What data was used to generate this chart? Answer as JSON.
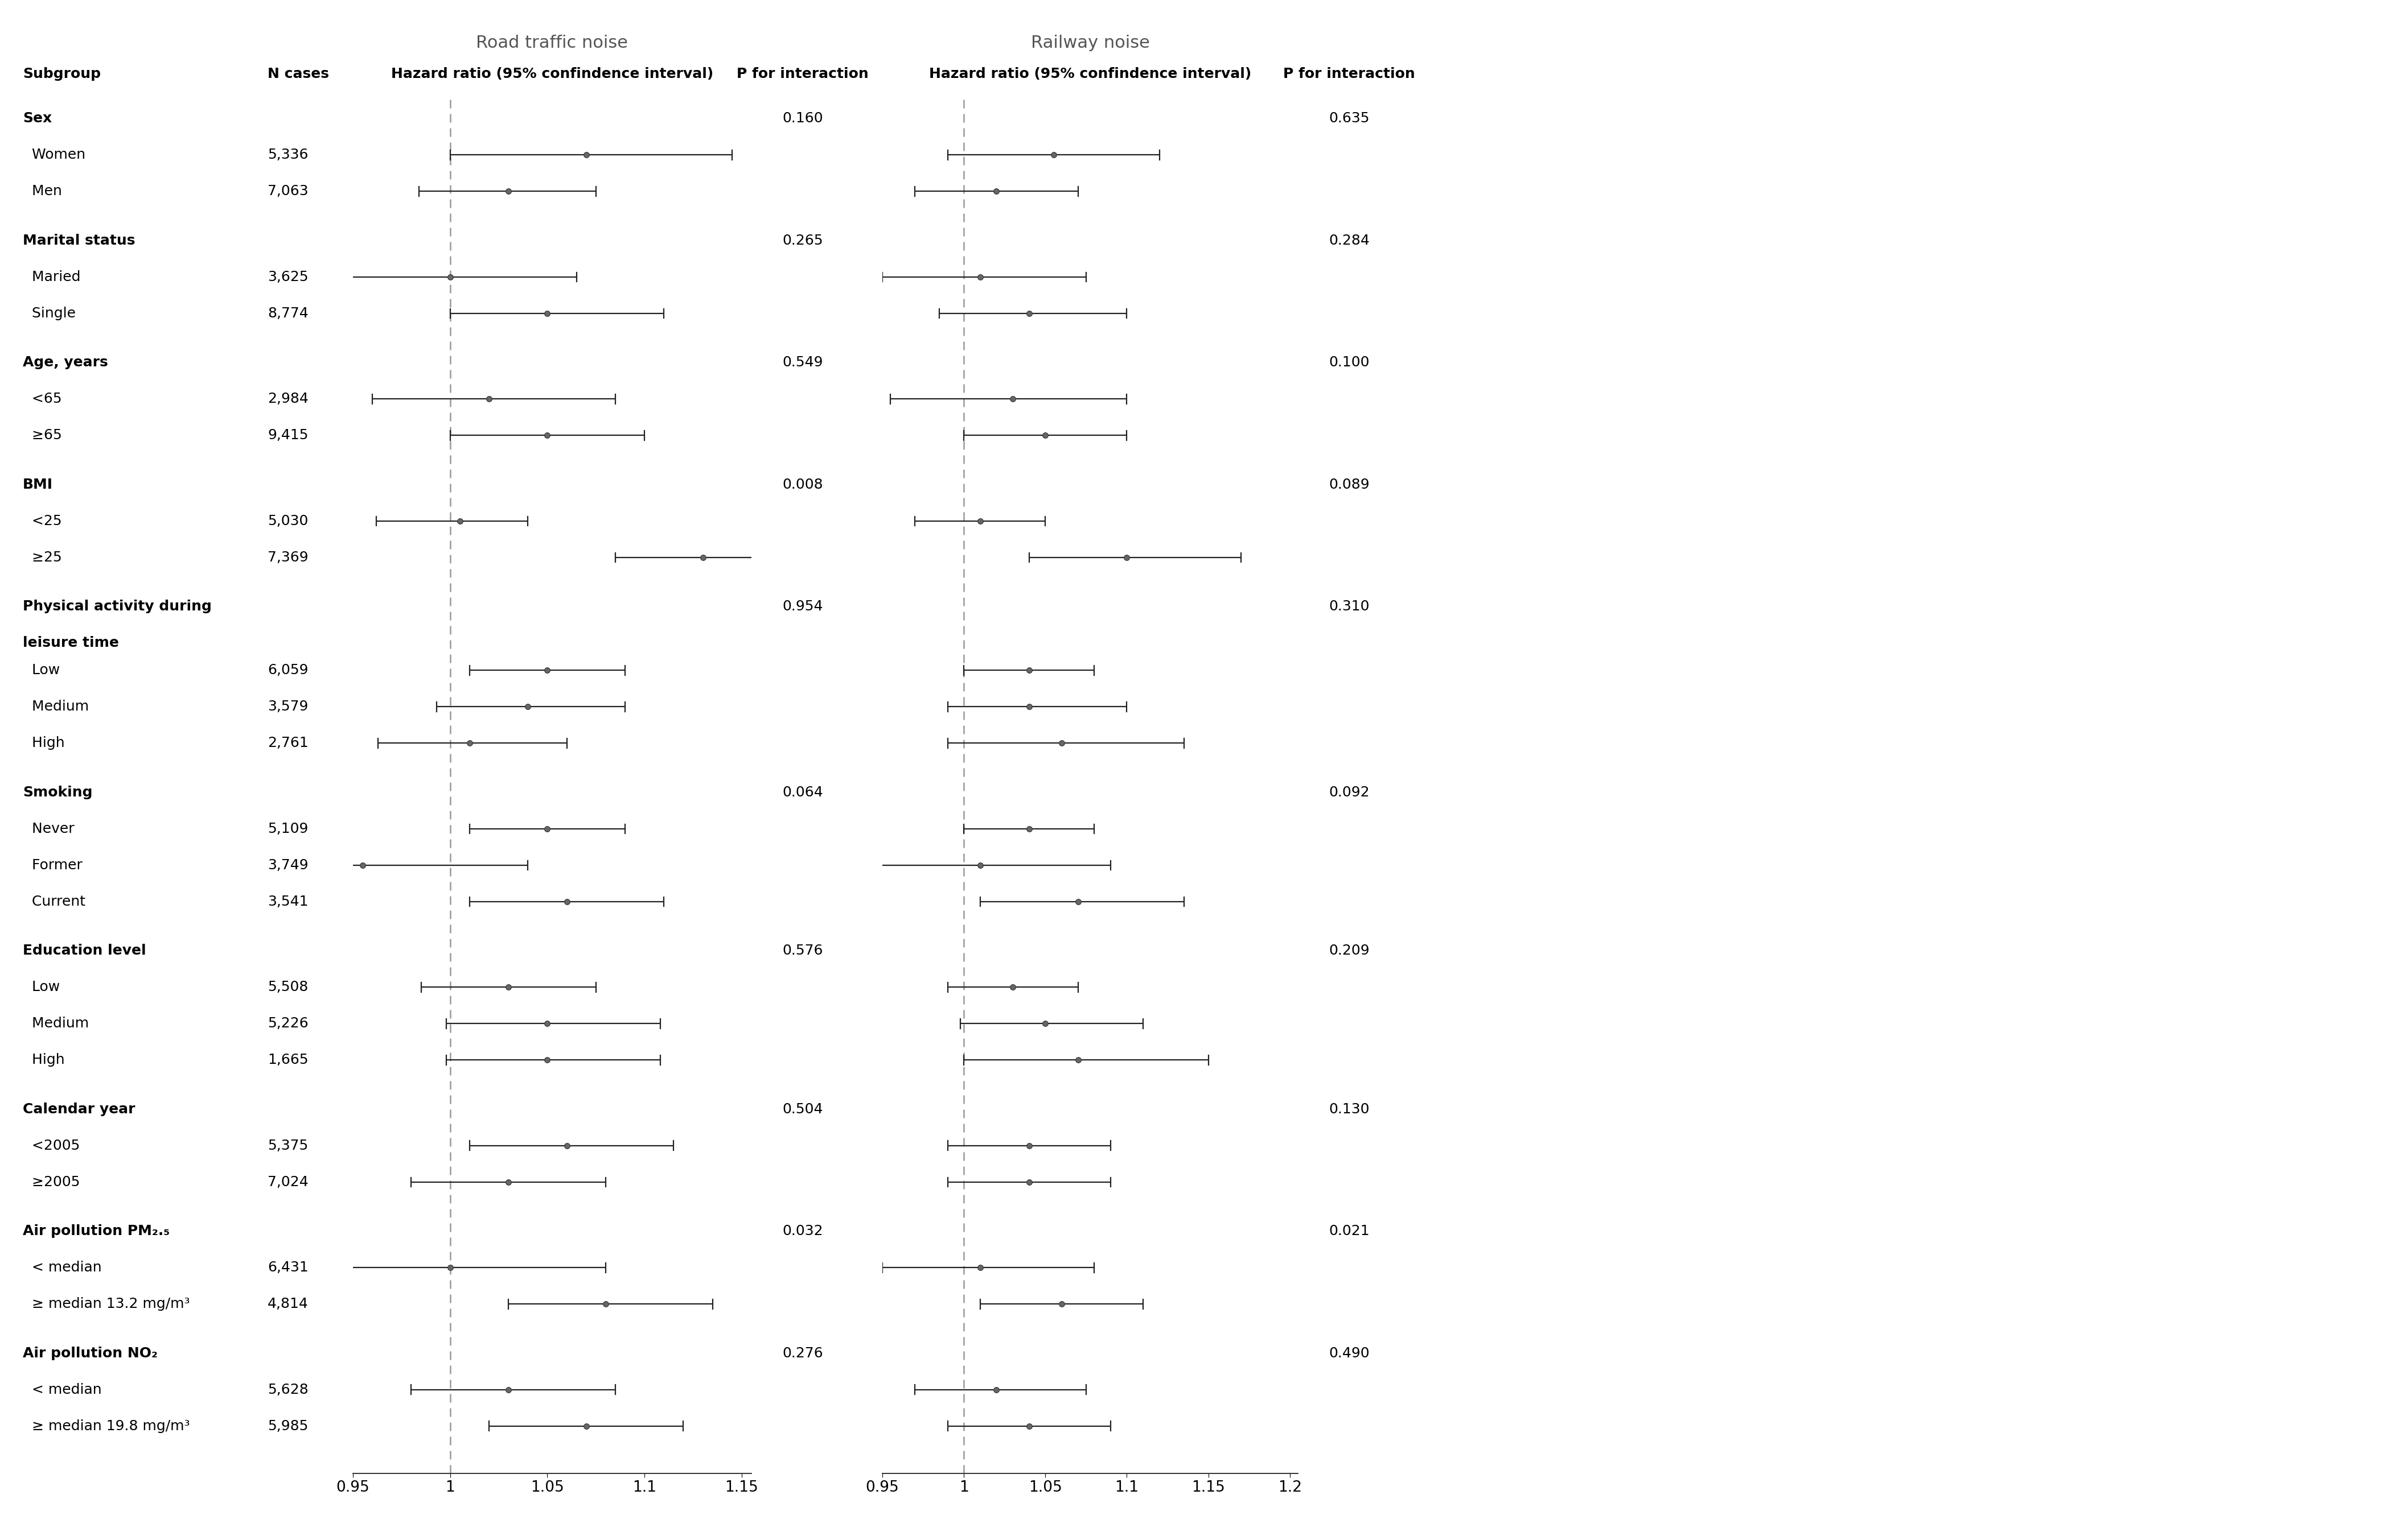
{
  "subgroups": [
    {
      "label": "Sex",
      "type": "header",
      "p_key": "Sex"
    },
    {
      "label": "  Women",
      "type": "data",
      "n": "5,336"
    },
    {
      "label": "  Men",
      "type": "data",
      "n": "7,063"
    },
    {
      "label": "",
      "type": "spacer"
    },
    {
      "label": "Marital status",
      "type": "header",
      "p_key": "Marital status"
    },
    {
      "label": "  Maried",
      "type": "data",
      "n": "3,625"
    },
    {
      "label": "  Single",
      "type": "data",
      "n": "8,774"
    },
    {
      "label": "",
      "type": "spacer"
    },
    {
      "label": "Age, years",
      "type": "header",
      "p_key": "Age, years"
    },
    {
      "label": "  <65",
      "type": "data",
      "n": "2,984"
    },
    {
      "label": "  ≥65",
      "type": "data",
      "n": "9,415"
    },
    {
      "label": "",
      "type": "spacer"
    },
    {
      "label": "BMI",
      "type": "header",
      "p_key": "BMI"
    },
    {
      "label": "  <25",
      "type": "data",
      "n": "5,030"
    },
    {
      "label": "  ≥25",
      "type": "data",
      "n": "7,369"
    },
    {
      "label": "",
      "type": "spacer"
    },
    {
      "label": "Physical activity during",
      "type": "header",
      "p_key": "Physical activity during"
    },
    {
      "label": "leisure time",
      "type": "header_cont"
    },
    {
      "label": "  Low",
      "type": "data",
      "n": "6,059"
    },
    {
      "label": "  Medium",
      "type": "data",
      "n": "3,579"
    },
    {
      "label": "  High",
      "type": "data",
      "n": "2,761"
    },
    {
      "label": "",
      "type": "spacer"
    },
    {
      "label": "Smoking",
      "type": "header",
      "p_key": "Smoking"
    },
    {
      "label": "  Never",
      "type": "data",
      "n": "5,109"
    },
    {
      "label": "  Former",
      "type": "data",
      "n": "3,749"
    },
    {
      "label": "  Current",
      "type": "data",
      "n": "3,541"
    },
    {
      "label": "",
      "type": "spacer"
    },
    {
      "label": "Education level",
      "type": "header",
      "p_key": "Education level"
    },
    {
      "label": "  Low",
      "type": "data",
      "n": "5,508"
    },
    {
      "label": "  Medium",
      "type": "data",
      "n": "5,226"
    },
    {
      "label": "  High",
      "type": "data",
      "n": "1,665"
    },
    {
      "label": "",
      "type": "spacer"
    },
    {
      "label": "Calendar year",
      "type": "header",
      "p_key": "Calendar year"
    },
    {
      "label": "  <2005",
      "type": "data",
      "n": "5,375"
    },
    {
      "label": "  ≥2005",
      "type": "data",
      "n": "7,024"
    },
    {
      "label": "",
      "type": "spacer"
    },
    {
      "label": "Air pollution PM₂.₅",
      "type": "header",
      "p_key": "Air pollution PM"
    },
    {
      "label": "  < median",
      "type": "data",
      "n": "6,431"
    },
    {
      "label": "  ≥ median 13.2 mg/m³",
      "type": "data",
      "n": "4,814"
    },
    {
      "label": "",
      "type": "spacer"
    },
    {
      "label": "Air pollution NO₂",
      "type": "header",
      "p_key": "Air pollution NO"
    },
    {
      "label": "  < median",
      "type": "data",
      "n": "5,628"
    },
    {
      "label": "  ≥ median 19.8 mg/m³",
      "type": "data",
      "n": "5,985"
    }
  ],
  "road_data": [
    {
      "hr": 1.07,
      "lo": 1.0,
      "hi": 1.145
    },
    {
      "hr": 1.03,
      "lo": 0.984,
      "hi": 1.075
    },
    {
      "hr": 1.0,
      "lo": 0.94,
      "hi": 1.065
    },
    {
      "hr": 1.05,
      "lo": 1.0,
      "hi": 1.11
    },
    {
      "hr": 1.02,
      "lo": 0.96,
      "hi": 1.085
    },
    {
      "hr": 1.05,
      "lo": 1.0,
      "hi": 1.1
    },
    {
      "hr": 1.005,
      "lo": 0.962,
      "hi": 1.04
    },
    {
      "hr": 1.13,
      "lo": 1.085,
      "hi": 1.19
    },
    {
      "hr": 1.05,
      "lo": 1.01,
      "hi": 1.09
    },
    {
      "hr": 1.04,
      "lo": 0.993,
      "hi": 1.09
    },
    {
      "hr": 1.01,
      "lo": 0.963,
      "hi": 1.06
    },
    {
      "hr": 1.05,
      "lo": 1.01,
      "hi": 1.09
    },
    {
      "hr": 0.955,
      "lo": 0.87,
      "hi": 1.04
    },
    {
      "hr": 1.06,
      "lo": 1.01,
      "hi": 1.11
    },
    {
      "hr": 1.03,
      "lo": 0.985,
      "hi": 1.075
    },
    {
      "hr": 1.05,
      "lo": 0.998,
      "hi": 1.108
    },
    {
      "hr": 1.05,
      "lo": 0.998,
      "hi": 1.108
    },
    {
      "hr": 1.06,
      "lo": 1.01,
      "hi": 1.115
    },
    {
      "hr": 1.03,
      "lo": 0.98,
      "hi": 1.08
    },
    {
      "hr": 1.0,
      "lo": 0.928,
      "hi": 1.08
    },
    {
      "hr": 1.08,
      "lo": 1.03,
      "hi": 1.135
    },
    {
      "hr": 1.03,
      "lo": 0.98,
      "hi": 1.085
    },
    {
      "hr": 1.07,
      "lo": 1.02,
      "hi": 1.12
    }
  ],
  "rail_data": [
    {
      "hr": 1.055,
      "lo": 0.99,
      "hi": 1.12
    },
    {
      "hr": 1.02,
      "lo": 0.97,
      "hi": 1.07
    },
    {
      "hr": 1.01,
      "lo": 0.95,
      "hi": 1.075
    },
    {
      "hr": 1.04,
      "lo": 0.985,
      "hi": 1.1
    },
    {
      "hr": 1.03,
      "lo": 0.955,
      "hi": 1.1
    },
    {
      "hr": 1.05,
      "lo": 1.0,
      "hi": 1.1
    },
    {
      "hr": 1.01,
      "lo": 0.97,
      "hi": 1.05
    },
    {
      "hr": 1.1,
      "lo": 1.04,
      "hi": 1.17
    },
    {
      "hr": 1.04,
      "lo": 1.0,
      "hi": 1.08
    },
    {
      "hr": 1.04,
      "lo": 0.99,
      "hi": 1.1
    },
    {
      "hr": 1.06,
      "lo": 0.99,
      "hi": 1.135
    },
    {
      "hr": 1.04,
      "lo": 1.0,
      "hi": 1.08
    },
    {
      "hr": 1.01,
      "lo": 0.93,
      "hi": 1.09
    },
    {
      "hr": 1.07,
      "lo": 1.01,
      "hi": 1.135
    },
    {
      "hr": 1.03,
      "lo": 0.99,
      "hi": 1.07
    },
    {
      "hr": 1.05,
      "lo": 0.998,
      "hi": 1.11
    },
    {
      "hr": 1.07,
      "lo": 1.0,
      "hi": 1.15
    },
    {
      "hr": 1.04,
      "lo": 0.99,
      "hi": 1.09
    },
    {
      "hr": 1.04,
      "lo": 0.99,
      "hi": 1.09
    },
    {
      "hr": 1.01,
      "lo": 0.95,
      "hi": 1.08
    },
    {
      "hr": 1.06,
      "lo": 1.01,
      "hi": 1.11
    },
    {
      "hr": 1.02,
      "lo": 0.97,
      "hi": 1.075
    },
    {
      "hr": 1.04,
      "lo": 0.99,
      "hi": 1.09
    }
  ],
  "road_p": {
    "Sex": "0.160",
    "Marital status": "0.265",
    "Age, years": "0.549",
    "BMI": "0.008",
    "Physical activity during": "0.954",
    "Smoking": "0.064",
    "Education level": "0.576",
    "Calendar year": "0.504",
    "Air pollution PM": "0.032",
    "Air pollution NO": "0.276"
  },
  "rail_p": {
    "Sex": "0.635",
    "Marital status": "0.284",
    "Age, years": "0.100",
    "BMI": "0.089",
    "Physical activity during": "0.310",
    "Smoking": "0.092",
    "Education level": "0.209",
    "Calendar year": "0.130",
    "Air pollution PM": "0.021",
    "Air pollution NO": "0.490"
  }
}
